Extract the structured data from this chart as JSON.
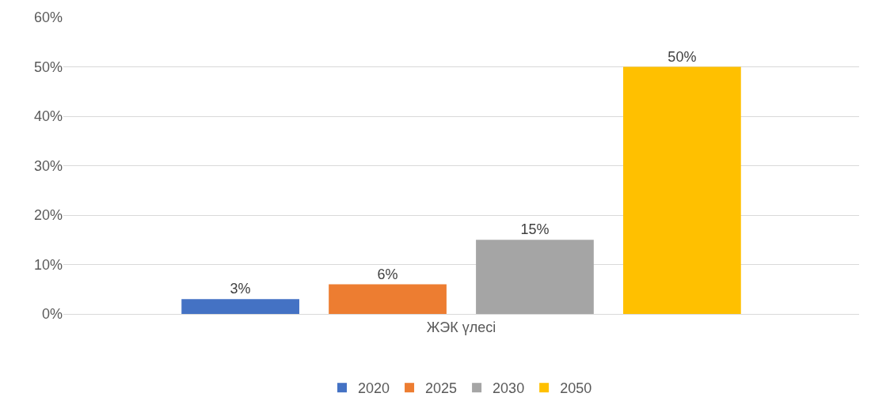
{
  "chart_data": {
    "type": "bar",
    "categories": [
      "ЖЭК үлесі"
    ],
    "series": [
      {
        "name": "2020",
        "color": "#4472c4",
        "values": [
          3
        ],
        "value_labels": [
          "3%"
        ]
      },
      {
        "name": "2025",
        "color": "#ed7d31",
        "values": [
          6
        ],
        "value_labels": [
          "6%"
        ]
      },
      {
        "name": "2030",
        "color": "#a5a5a5",
        "values": [
          15
        ],
        "value_labels": [
          "15%"
        ]
      },
      {
        "name": "2050",
        "color": "#ffc000",
        "values": [
          50
        ],
        "value_labels": [
          "50%"
        ]
      }
    ],
    "ylim": [
      0,
      60
    ],
    "yticks": [
      {
        "value": 0,
        "label": "0%"
      },
      {
        "value": 10,
        "label": "10%"
      },
      {
        "value": 20,
        "label": "20%"
      },
      {
        "value": 30,
        "label": "30%"
      },
      {
        "value": 40,
        "label": "40%"
      },
      {
        "value": 50,
        "label": "50%"
      },
      {
        "value": 60,
        "label": "60%"
      }
    ],
    "grid": "y",
    "legend": "bottom"
  }
}
